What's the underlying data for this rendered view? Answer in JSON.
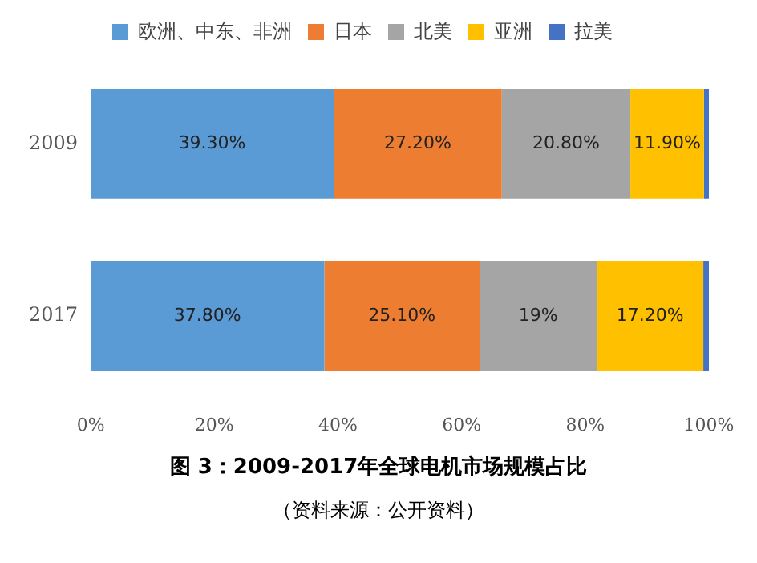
{
  "chart_data": {
    "type": "bar",
    "orientation": "horizontal",
    "stacked": true,
    "title": "图 3：2009-2017年全球电机市场规模占比",
    "annotations": [
      "（资料来源：公开资料）"
    ],
    "categories": [
      "2009",
      "2017"
    ],
    "series": [
      {
        "name": "欧洲、中东、非洲",
        "color": "#5b9bd5",
        "values": [
          39.3,
          37.8
        ],
        "value_labels": [
          "39.30%",
          "37.80%"
        ]
      },
      {
        "name": "日本",
        "color": "#ed7d31",
        "values": [
          27.2,
          25.1
        ],
        "value_labels": [
          "27.20%",
          "25.10%"
        ]
      },
      {
        "name": "北美",
        "color": "#a5a5a5",
        "values": [
          20.8,
          19
        ],
        "value_labels": [
          "20.80%",
          "19%"
        ]
      },
      {
        "name": "亚洲",
        "color": "#ffc000",
        "values": [
          11.9,
          17.2
        ],
        "value_labels": [
          "11.90%",
          "17.20%"
        ]
      },
      {
        "name": "拉美",
        "color": "#4472c4",
        "values": [
          0.8,
          0.9
        ],
        "value_labels": [
          null,
          null
        ]
      }
    ],
    "xlim": [
      0,
      100
    ],
    "xticks": [
      {
        "value": 0,
        "label": "0%"
      },
      {
        "value": 20,
        "label": "20%"
      },
      {
        "value": 40,
        "label": "40%"
      },
      {
        "value": 60,
        "label": "60%"
      },
      {
        "value": 80,
        "label": "80%"
      },
      {
        "value": 100,
        "label": "100%"
      }
    ],
    "grid": false,
    "legend": "top"
  }
}
